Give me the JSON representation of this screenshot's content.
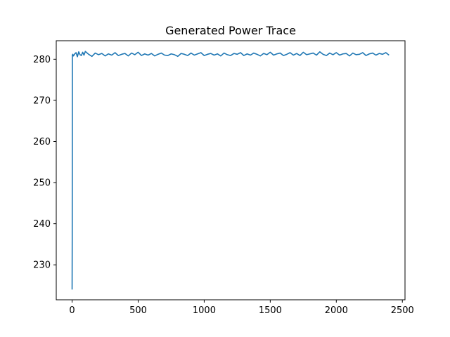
{
  "chart_data": {
    "type": "line",
    "title": "Generated Power Trace",
    "xlabel": "",
    "ylabel": "",
    "xlim": [
      -120,
      2520
    ],
    "ylim": [
      221.5,
      284.5
    ],
    "xticks": [
      0,
      500,
      1000,
      1500,
      2000,
      2500
    ],
    "yticks": [
      230,
      240,
      250,
      260,
      270,
      280
    ],
    "grid": false,
    "series": [
      {
        "color": "#1f77b4",
        "x": [
          0,
          1,
          2,
          5,
          10,
          20,
          30,
          40,
          50,
          60,
          70,
          80,
          90,
          100,
          125,
          150,
          175,
          200,
          225,
          250,
          275,
          300,
          325,
          350,
          375,
          400,
          425,
          450,
          475,
          500,
          525,
          550,
          575,
          600,
          625,
          650,
          675,
          700,
          725,
          750,
          775,
          800,
          825,
          850,
          875,
          900,
          925,
          950,
          975,
          1000,
          1025,
          1050,
          1075,
          1100,
          1125,
          1150,
          1175,
          1200,
          1225,
          1250,
          1275,
          1300,
          1325,
          1350,
          1375,
          1400,
          1425,
          1450,
          1475,
          1500,
          1525,
          1550,
          1575,
          1600,
          1625,
          1650,
          1675,
          1700,
          1725,
          1750,
          1775,
          1800,
          1825,
          1850,
          1875,
          1900,
          1925,
          1950,
          1975,
          2000,
          2025,
          2050,
          2075,
          2100,
          2125,
          2150,
          2175,
          2200,
          2225,
          2250,
          2275,
          2300,
          2325,
          2350,
          2375,
          2399
        ],
        "y": [
          224.0,
          236.0,
          281.0,
          281.2,
          280.8,
          281.3,
          281.6,
          280.6,
          281.8,
          281.1,
          280.9,
          281.7,
          281.0,
          281.9,
          281.2,
          280.7,
          281.5,
          281.1,
          281.4,
          280.8,
          281.3,
          281.0,
          281.6,
          280.9,
          281.2,
          281.4,
          280.8,
          281.5,
          281.1,
          281.7,
          280.9,
          281.3,
          281.0,
          281.4,
          280.8,
          281.2,
          281.5,
          281.0,
          280.9,
          281.3,
          281.1,
          280.7,
          281.4,
          281.2,
          280.9,
          281.5,
          281.0,
          281.3,
          281.6,
          280.9,
          281.2,
          281.4,
          281.0,
          281.3,
          280.8,
          281.5,
          281.1,
          280.9,
          281.4,
          281.2,
          281.6,
          280.9,
          281.3,
          281.0,
          281.5,
          281.2,
          280.8,
          281.4,
          281.1,
          281.7,
          281.0,
          281.3,
          281.5,
          280.9,
          281.2,
          281.6,
          281.0,
          281.4,
          280.9,
          281.7,
          281.1,
          281.3,
          281.5,
          281.0,
          281.8,
          281.2,
          280.9,
          281.5,
          281.1,
          281.6,
          281.0,
          281.3,
          281.4,
          280.8,
          281.5,
          281.1,
          281.2,
          281.6,
          280.9,
          281.3,
          281.5,
          281.0,
          281.4,
          281.2,
          281.6,
          281.0
        ]
      }
    ]
  }
}
